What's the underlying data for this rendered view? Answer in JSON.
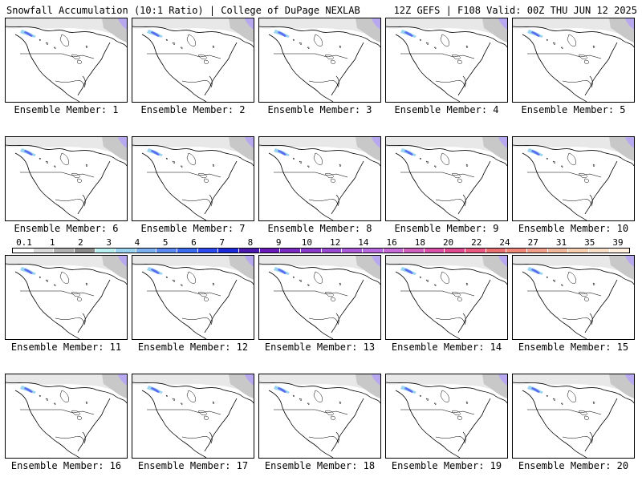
{
  "header": {
    "left": "Snowfall Accumulation (10:1 Ratio) | College of DuPage NEXLAB",
    "right": "12Z GEFS | F108 Valid: 00Z THU JUN 12 2025"
  },
  "panels": [
    {
      "label": "Ensemble Member: 1"
    },
    {
      "label": "Ensemble Member: 2"
    },
    {
      "label": "Ensemble Member: 3"
    },
    {
      "label": "Ensemble Member: 4"
    },
    {
      "label": "Ensemble Member: 5"
    },
    {
      "label": "Ensemble Member: 6"
    },
    {
      "label": "Ensemble Member: 7"
    },
    {
      "label": "Ensemble Member: 8"
    },
    {
      "label": "Ensemble Member: 9"
    },
    {
      "label": "Ensemble Member: 10"
    },
    {
      "label": "Ensemble Member: 11"
    },
    {
      "label": "Ensemble Member: 12"
    },
    {
      "label": "Ensemble Member: 13"
    },
    {
      "label": "Ensemble Member: 14"
    },
    {
      "label": "Ensemble Member: 15"
    },
    {
      "label": "Ensemble Member: 16"
    },
    {
      "label": "Ensemble Member: 17"
    },
    {
      "label": "Ensemble Member: 18"
    },
    {
      "label": "Ensemble Member: 19"
    },
    {
      "label": "Ensemble Member: 20"
    }
  ],
  "colorbar": {
    "labels": [
      "0.1",
      "1",
      "2",
      "3",
      "4",
      "5",
      "6",
      "7",
      "8",
      "9",
      "10",
      "12",
      "14",
      "16",
      "18",
      "20",
      "22",
      "24",
      "27",
      "31",
      "35",
      "39"
    ],
    "colors": [
      "#ffffff",
      "#d9d9d9",
      "#b0b0b0",
      "#8a8a8a",
      "#b8f0f0",
      "#9ad4f0",
      "#7ab0f0",
      "#5a8af0",
      "#3a6af0",
      "#2a4af0",
      "#1a2ad8",
      "#4a1ab0",
      "#6a1ab8",
      "#7a2ac0",
      "#8a3ac8",
      "#9a4ad0",
      "#aa5ad8",
      "#ba6ae0",
      "#c86ad8",
      "#d060c0",
      "#d850a8",
      "#e04890",
      "#e85880",
      "#e87070",
      "#f08878",
      "#f0a088",
      "#f0b898",
      "#f8d0b0",
      "#f8e0c8",
      "#fff0e0"
    ]
  },
  "colors": {
    "text": "#000000",
    "border": "#000000"
  }
}
